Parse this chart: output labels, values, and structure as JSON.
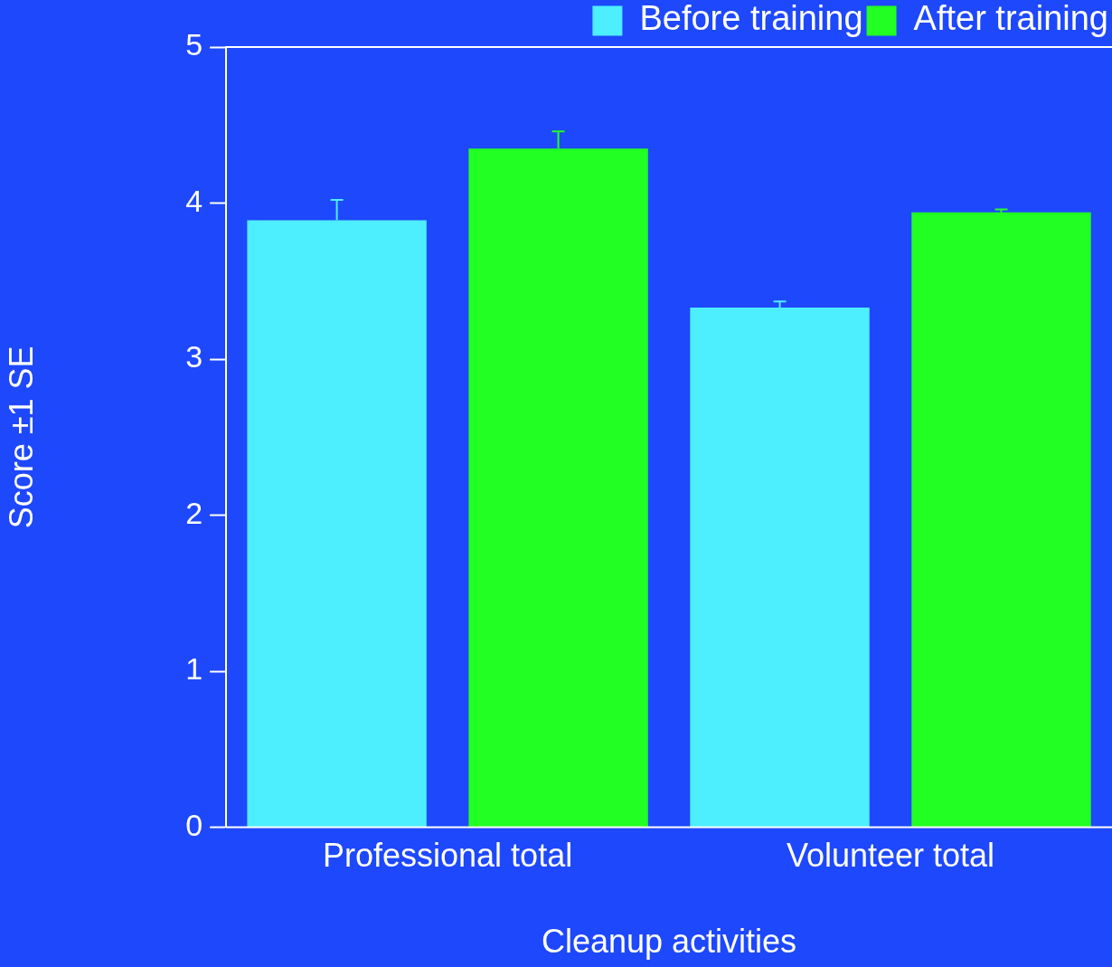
{
  "chart_data": {
    "type": "bar",
    "xlabel": "Cleanup activities",
    "ylabel": "Score ±1 SE",
    "categories": [
      "Professional total",
      "Volunteer total"
    ],
    "series": [
      {
        "name": "Before training",
        "color": "#4deefe",
        "values": [
          3.89,
          3.33
        ],
        "errors": [
          [
            3.89,
            4.02
          ],
          [
            3.33,
            3.37
          ]
        ]
      },
      {
        "name": "After training",
        "color": "#22ff22",
        "values": [
          4.35,
          3.94
        ],
        "errors": [
          [
            4.35,
            4.46
          ],
          [
            3.94,
            3.96
          ]
        ]
      }
    ],
    "ylim": [
      0,
      5
    ],
    "yticks": [
      0,
      1,
      2,
      3,
      4,
      5
    ],
    "grid": false,
    "legend": "top right"
  }
}
